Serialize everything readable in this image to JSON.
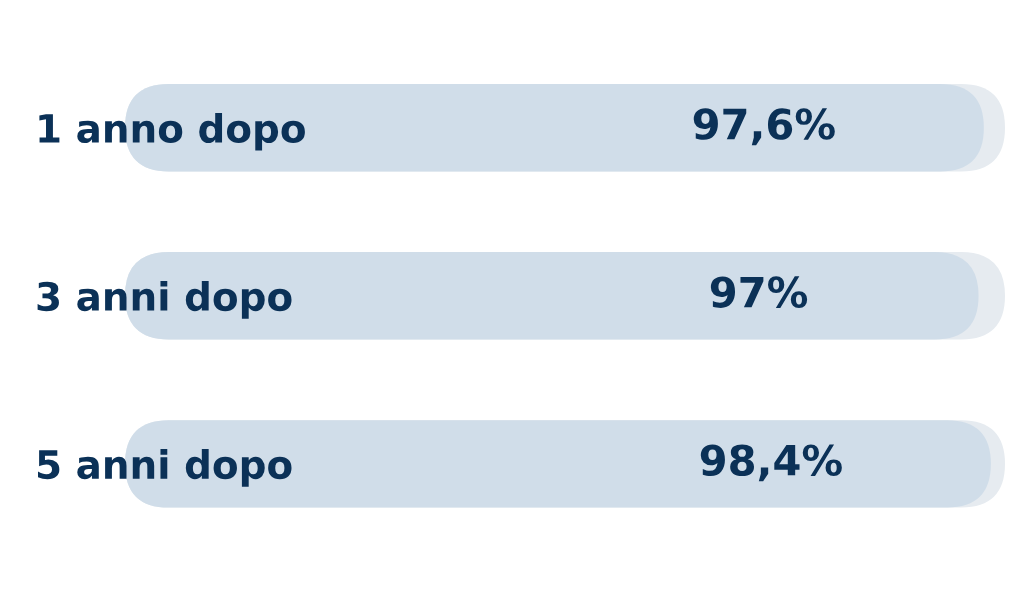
{
  "chart_data": {
    "type": "bar",
    "orientation": "horizontal",
    "categories": [
      "1 anno dopo",
      "3 anni dopo",
      "5 anni dopo"
    ],
    "values": [
      97.6,
      97,
      98.4
    ],
    "color": "#d0dde9",
    "value_labels": [
      "97,6%",
      "97%",
      "98,4%"
    ],
    "tick_labels": "y"
  }
}
